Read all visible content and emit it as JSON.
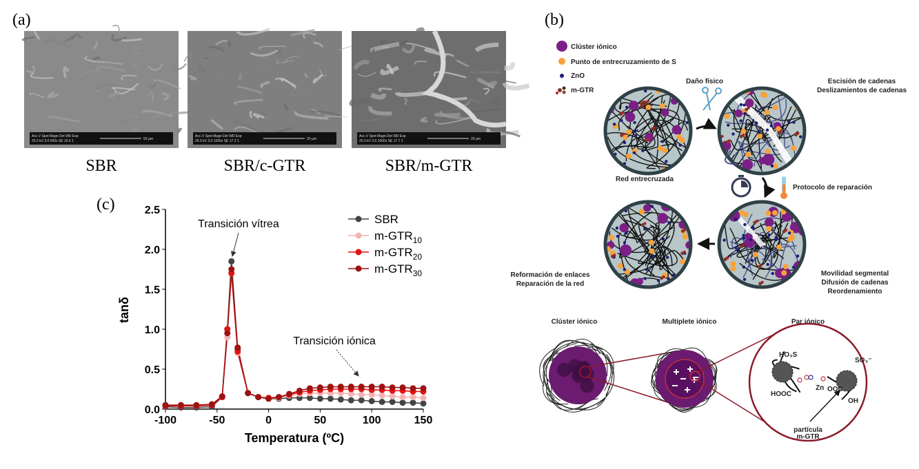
{
  "panel_labels": {
    "a": "(a)",
    "b": "(b)",
    "c": "(c)"
  },
  "sem": {
    "images": [
      {
        "caption": "SBR",
        "info_head": "Acc.V  Spot Magn   Det  WD  Exp",
        "info_values": "25.0 kV 3.0  500x    SE  15.6  1",
        "scale": "50 µm"
      },
      {
        "caption": "SBR/c-GTR",
        "info_head": "Acc.V  Spot Magn   Det  WD  Exp",
        "info_values": "25.0 kV 3.0  1000x  SE  17.2  1",
        "scale": "20 µm"
      },
      {
        "caption": "SBR/m-GTR",
        "info_head": "Acc.V  Spot Magn   Det  WD  Exp",
        "info_values": "25.0 kV 3.0  1000x  SE  17.7  1",
        "scale": "20 µm"
      }
    ]
  },
  "diagram": {
    "legend": [
      "Clúster iónico",
      "Punto de entrecruzamiento de S",
      "ZnO",
      "m-GTR"
    ],
    "damage": "Daño físico",
    "scission": [
      "Escisión de cadenas",
      "Deslizamientos de cadenas"
    ],
    "network": "Red entrecruzada",
    "protocol": "Protocolo de reparación",
    "reform": [
      "Reformación de enlaces",
      "Reparación de la red"
    ],
    "mobility": [
      "Movilidad segmental",
      "Difusión de cadenas",
      "Reordenamiento"
    ],
    "bottom": [
      "Clúster iónico",
      "Multiplete iónico",
      "Par iónico"
    ],
    "particle": [
      "partícula",
      "m-GTR"
    ],
    "ion_pair_labels": [
      "HO₃S",
      "SO₃⁻",
      "Zn",
      "OOC",
      "HOOC",
      "OH"
    ]
  },
  "chart_data": {
    "type": "line",
    "x_label": "Temperatura (ºC)",
    "y_label": "tanδ",
    "annotations": [
      "Transición vítrea",
      "Transición iónica"
    ],
    "x": [
      -100,
      -85,
      -70,
      -55,
      -45,
      -40,
      -36,
      -30,
      -20,
      -10,
      0,
      10,
      20,
      30,
      40,
      50,
      60,
      70,
      80,
      90,
      100,
      110,
      120,
      130,
      140,
      150
    ],
    "series": [
      {
        "name": "SBR",
        "color": "#444444",
        "values": [
          0.03,
          0.02,
          0.02,
          0.03,
          0.15,
          1.0,
          1.85,
          0.75,
          0.2,
          0.15,
          0.13,
          0.13,
          0.14,
          0.14,
          0.14,
          0.13,
          0.13,
          0.12,
          0.11,
          0.11,
          0.1,
          0.09,
          0.09,
          0.08,
          0.08,
          0.07
        ]
      },
      {
        "name": "m-GTR",
        "subscript": "10",
        "color": "#f4b3b3",
        "values": [
          0.05,
          0.04,
          0.04,
          0.05,
          0.15,
          0.9,
          1.7,
          0.7,
          0.2,
          0.15,
          0.13,
          0.14,
          0.17,
          0.19,
          0.2,
          0.2,
          0.2,
          0.2,
          0.19,
          0.18,
          0.18,
          0.17,
          0.16,
          0.15,
          0.15,
          0.14
        ]
      },
      {
        "name": "m-GTR",
        "subscript": "20",
        "color": "#e31414",
        "values": [
          0.04,
          0.04,
          0.04,
          0.05,
          0.15,
          1.0,
          1.7,
          0.72,
          0.2,
          0.15,
          0.14,
          0.15,
          0.18,
          0.21,
          0.23,
          0.24,
          0.25,
          0.25,
          0.25,
          0.25,
          0.24,
          0.24,
          0.23,
          0.23,
          0.22,
          0.22
        ]
      },
      {
        "name": "m-GTR",
        "subscript": "30",
        "color": "#9e1212",
        "values": [
          0.05,
          0.05,
          0.05,
          0.06,
          0.16,
          0.95,
          1.75,
          0.77,
          0.2,
          0.15,
          0.13,
          0.15,
          0.19,
          0.23,
          0.26,
          0.27,
          0.28,
          0.28,
          0.28,
          0.28,
          0.28,
          0.28,
          0.27,
          0.27,
          0.26,
          0.26
        ]
      }
    ],
    "xlim": [
      -100,
      150
    ],
    "xticks": [
      -100,
      -50,
      0,
      50,
      100,
      150
    ],
    "ylim": [
      0,
      2.5
    ],
    "yticks": [
      {
        "value": 0,
        "label": "0.0"
      },
      0.5,
      {
        "value": 1,
        "label": "1.0"
      },
      1.5,
      {
        "value": 2,
        "label": "2.0"
      },
      2.5
    ],
    "legend": "upper right",
    "grid": false
  }
}
